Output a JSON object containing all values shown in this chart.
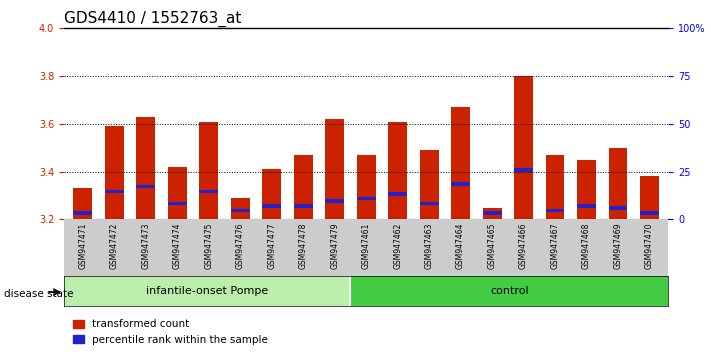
{
  "title": "GDS4410 / 1552763_at",
  "samples": [
    "GSM947471",
    "GSM947472",
    "GSM947473",
    "GSM947474",
    "GSM947475",
    "GSM947476",
    "GSM947477",
    "GSM947478",
    "GSM947479",
    "GSM947461",
    "GSM947462",
    "GSM947463",
    "GSM947464",
    "GSM947465",
    "GSM947466",
    "GSM947467",
    "GSM947468",
    "GSM947469",
    "GSM947470"
  ],
  "transformed_counts": [
    3.33,
    3.59,
    3.63,
    3.42,
    3.61,
    3.29,
    3.41,
    3.47,
    3.62,
    3.47,
    3.61,
    3.49,
    3.67,
    3.25,
    3.8,
    3.47,
    3.45,
    3.5,
    3.38
  ],
  "percentile_positions": [
    3.22,
    3.31,
    3.33,
    3.26,
    3.31,
    3.23,
    3.25,
    3.25,
    3.27,
    3.28,
    3.3,
    3.26,
    3.34,
    3.22,
    3.4,
    3.23,
    3.25,
    3.24,
    3.22
  ],
  "percentile_heights": [
    0.015,
    0.015,
    0.015,
    0.015,
    0.015,
    0.015,
    0.015,
    0.015,
    0.015,
    0.015,
    0.015,
    0.015,
    0.015,
    0.015,
    0.015,
    0.015,
    0.015,
    0.015,
    0.015
  ],
  "base": 3.2,
  "ylim": [
    3.2,
    4.0
  ],
  "yticks": [
    3.2,
    3.4,
    3.6,
    3.8,
    4.0
  ],
  "right_yticks": [
    0,
    25,
    50,
    75,
    100
  ],
  "right_ylim": [
    0,
    100
  ],
  "bar_color": "#cc2200",
  "blue_color": "#2222cc",
  "group1_label": "infantile-onset Pompe",
  "group2_label": "control",
  "group1_count": 9,
  "group2_count": 10,
  "disease_state_label": "disease state",
  "legend_labels": [
    "transformed count",
    "percentile rank within the sample"
  ],
  "bg_color": "#dddddd",
  "group1_bg": "#aaddaa",
  "group2_bg": "#44cc44",
  "bar_width": 0.6,
  "title_fontsize": 11,
  "tick_fontsize": 7,
  "label_fontsize": 9
}
